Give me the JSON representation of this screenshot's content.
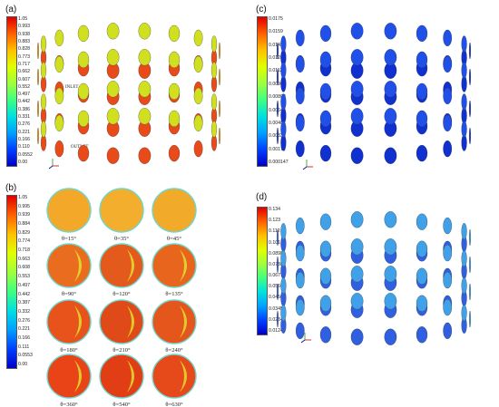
{
  "panels": {
    "a": {
      "label": "(a)",
      "colorbar_ticks": [
        "1.05",
        "0.993",
        "0.938",
        "0.883",
        "0.828",
        "0.773",
        "0.717",
        "0.662",
        "0.607",
        "0.552",
        "0.497",
        "0.442",
        "0.386",
        "0.331",
        "0.276",
        "0.221",
        "0.166",
        "0.110",
        "0.0552",
        "0.00"
      ],
      "inlet_label": "INLET",
      "outlet_label": "OUTLET"
    },
    "b": {
      "label": "(b)",
      "colorbar_ticks": [
        "1.05",
        "0.995",
        "0.939",
        "0.884",
        "0.829",
        "0.774",
        "0.718",
        "0.663",
        "0.608",
        "0.553",
        "0.497",
        "0.442",
        "0.387",
        "0.332",
        "0.276",
        "0.221",
        "0.166",
        "0.111",
        "0.0553",
        "0.00"
      ],
      "angles": [
        "θ=15°",
        "θ=35°",
        "θ=45°",
        "θ=90°",
        "θ=120°",
        "θ=135°",
        "θ=180°",
        "θ=210°",
        "θ=240°",
        "θ=360°",
        "θ=540°",
        "θ=630°"
      ]
    },
    "c": {
      "label": "(c)",
      "colorbar_ticks": [
        "0.0175",
        "0.0159",
        "0.0143",
        "0.0128",
        "0.0112",
        "0.00960",
        "0.00803",
        "0.00645",
        "0.00487",
        "0.00330",
        "0.00172",
        "0.000147"
      ]
    },
    "d": {
      "label": "(d)",
      "colorbar_ticks": [
        "0.134",
        "0.123",
        "0.112",
        "0.101",
        "0.0898",
        "0.0788",
        "0.0677",
        "0.0566",
        "0.0456",
        "0.0345",
        "0.0234",
        "0.0124"
      ]
    }
  },
  "colors": {
    "jet": [
      "#0000c8",
      "#0040ff",
      "#00a0ff",
      "#00e0e0",
      "#40ff80",
      "#a0ff40",
      "#e0ff00",
      "#ffc000",
      "#ff6000",
      "#e00000"
    ]
  }
}
